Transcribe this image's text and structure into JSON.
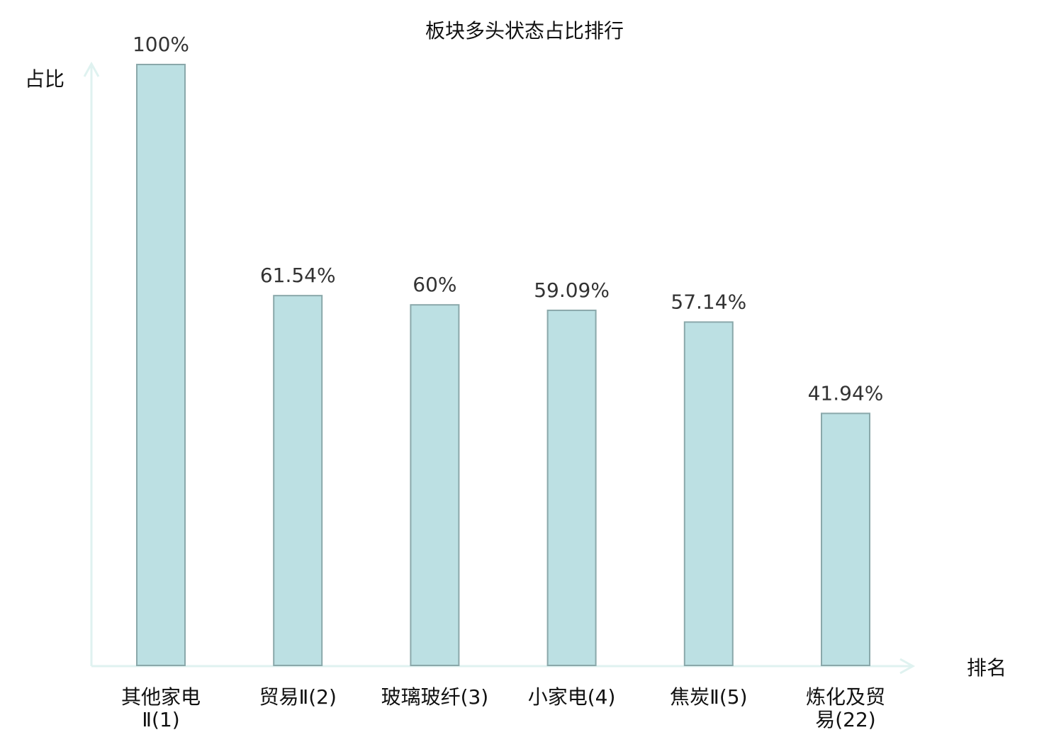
{
  "chart_data": {
    "type": "bar",
    "title": "板块多头状态占比排行",
    "xlabel": "排名",
    "ylabel": "占比",
    "categories": [
      [
        "其他家电",
        "Ⅱ(1)"
      ],
      [
        "贸易Ⅱ(2)"
      ],
      [
        "玻璃玻纤(3)"
      ],
      [
        "小家电(4)"
      ],
      [
        "焦炭Ⅱ(5)"
      ],
      [
        "炼化及贸",
        "易(22)"
      ]
    ],
    "values": [
      100,
      61.54,
      60,
      59.09,
      57.14,
      41.94
    ],
    "value_labels": [
      "100%",
      "61.54%",
      "60%",
      "59.09%",
      "57.14%",
      "41.94%"
    ],
    "highlight_index": 5,
    "ylim": [
      0,
      100
    ],
    "grid": false,
    "colors": {
      "bar_fill": "#bce0e3",
      "bar_stroke": "#8aa8aa",
      "axis": "#dff2f0",
      "highlight_text": "#e8141c",
      "text": "#111111"
    }
  }
}
